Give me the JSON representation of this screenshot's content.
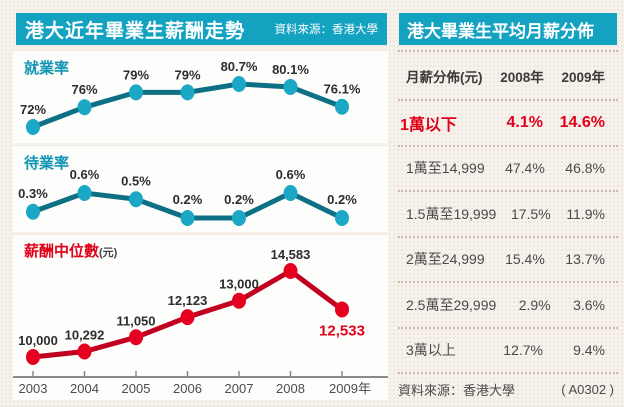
{
  "colors": {
    "accent_teal": "#14a2c1",
    "teal_line": "#0e7085",
    "teal_dot": "#1ba7c6",
    "red_line": "#c10021",
    "red_dot": "#e6001f",
    "highlight_red": "#e10019"
  },
  "left_panel": {
    "title": "港大近年畢業生薪酬走勢",
    "source": "資料來源：香港大學",
    "chart1_label": "就業率",
    "chart2_label": "待業率",
    "chart3_label": "薪酬中位數",
    "chart3_unit": "(元)",
    "axis_years": [
      "2003",
      "2004",
      "2005",
      "2006",
      "2007",
      "2008",
      "2009年"
    ]
  },
  "right_panel": {
    "title": "港大畢業生平均月薪分佈",
    "header": {
      "col_label": "月薪分佈(元)",
      "col_2008": "2008年",
      "col_2009": "2009年"
    },
    "rows": [
      {
        "label": "1萬以下",
        "v2008": "4.1%",
        "v2009": "14.6%"
      },
      {
        "label": "1萬至14,999",
        "v2008": "47.4%",
        "v2009": "46.8%"
      },
      {
        "label": "1.5萬至19,999",
        "v2008": "17.5%",
        "v2009": "11.9%"
      },
      {
        "label": "2萬至24,999",
        "v2008": "15.4%",
        "v2009": "13.7%"
      },
      {
        "label": "2.5萬至29,999",
        "v2008": "2.9%",
        "v2009": "3.6%"
      },
      {
        "label": "3萬以上",
        "v2008": "12.7%",
        "v2009": "9.4%"
      }
    ],
    "footer": {
      "source": "資料來源：香港大學",
      "code": "( A0302 )"
    }
  },
  "chart_data": [
    {
      "type": "line",
      "title": "就業率",
      "x": [
        "2003",
        "2004",
        "2005",
        "2006",
        "2007",
        "2008",
        "2009"
      ],
      "values": [
        72,
        76,
        79,
        79,
        80.7,
        80.1,
        76.1
      ],
      "labels": [
        "72%",
        "76%",
        "79%",
        "79%",
        "80.7%",
        "80.1%",
        "76.1%"
      ],
      "ylabel": "就業率 (%)",
      "ylim": [
        70,
        82
      ],
      "grid": false,
      "legend": "none"
    },
    {
      "type": "line",
      "title": "待業率",
      "x": [
        "2003",
        "2004",
        "2005",
        "2006",
        "2007",
        "2008",
        "2009"
      ],
      "values": [
        0.3,
        0.6,
        0.5,
        0.2,
        0.2,
        0.6,
        0.2
      ],
      "labels": [
        "0.3%",
        "0.6%",
        "0.5%",
        "0.2%",
        "0.2%",
        "0.6%",
        "0.2%"
      ],
      "ylabel": "待業率 (%)",
      "ylim": [
        0,
        0.8
      ],
      "grid": false,
      "legend": "none"
    },
    {
      "type": "line",
      "title": "薪酬中位數(元)",
      "x": [
        "2003",
        "2004",
        "2005",
        "2006",
        "2007",
        "2008",
        "2009"
      ],
      "values": [
        10000,
        10292,
        11050,
        12123,
        13000,
        14583,
        12533
      ],
      "labels": [
        "10,000",
        "10,292",
        "11,050",
        "12,123",
        "13,000",
        "14,583",
        "12,533"
      ],
      "ylabel": "薪酬中位數 (元)",
      "ylim": [
        9500,
        15500
      ],
      "grid": false,
      "legend": "none"
    },
    {
      "type": "table",
      "title": "港大畢業生平均月薪分佈",
      "columns": [
        "月薪分佈(元)",
        "2008年",
        "2009年"
      ],
      "rows": [
        [
          "1萬以下",
          "4.1%",
          "14.6%"
        ],
        [
          "1萬至14,999",
          "47.4%",
          "46.8%"
        ],
        [
          "1.5萬至19,999",
          "17.5%",
          "11.9%"
        ],
        [
          "2萬至24,999",
          "15.4%",
          "13.7%"
        ],
        [
          "2.5萬至29,999",
          "2.9%",
          "3.6%"
        ],
        [
          "3萬以上",
          "12.7%",
          "9.4%"
        ]
      ]
    }
  ]
}
